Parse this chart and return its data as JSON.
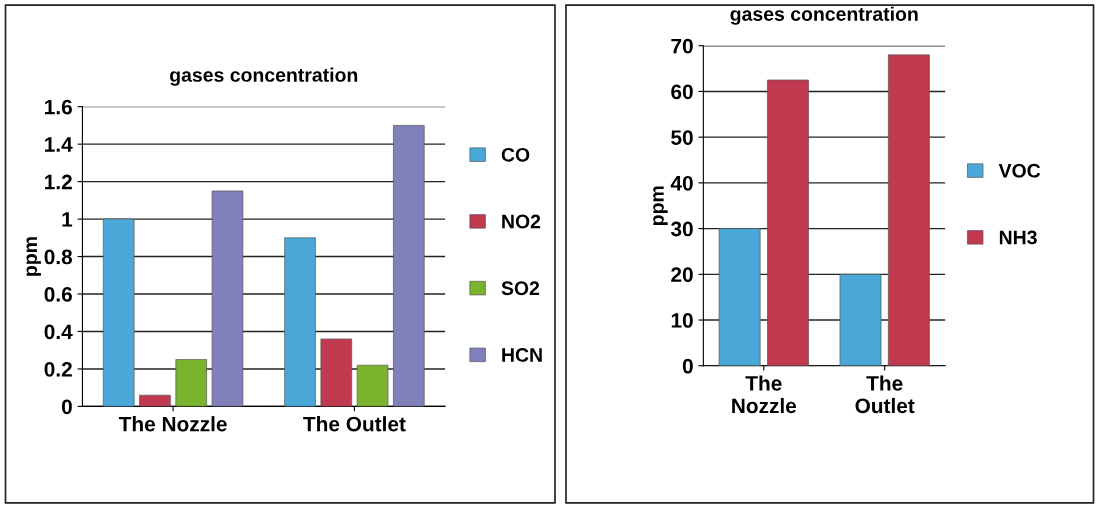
{
  "chart_data": [
    {
      "type": "bar",
      "title": "gases concentration",
      "ylabel": "ppm",
      "categories": [
        "The Nozzle",
        "The Outlet"
      ],
      "series": [
        {
          "name": "CO",
          "color": "#4aa8d8",
          "values": [
            1.0,
            0.9
          ]
        },
        {
          "name": "NO2",
          "color": "#c0394f",
          "values": [
            0.06,
            0.36
          ]
        },
        {
          "name": "SO2",
          "color": "#7ab32e",
          "values": [
            0.25,
            0.22
          ]
        },
        {
          "name": "HCN",
          "color": "#8080bb",
          "values": [
            1.15,
            1.5
          ]
        }
      ],
      "ylim": [
        0,
        1.6
      ],
      "yticks": [
        0,
        0.2,
        0.4,
        0.6,
        0.8,
        1,
        1.2,
        1.4,
        1.6
      ],
      "grid": "y",
      "legend": "right"
    },
    {
      "type": "bar",
      "title": "gases concentration",
      "ylabel": "ppm",
      "categories": [
        "The Nozzle",
        "The Outlet"
      ],
      "series": [
        {
          "name": "VOC",
          "color": "#4aa8d8",
          "values": [
            30,
            20
          ]
        },
        {
          "name": "NH3",
          "color": "#c0394f",
          "values": [
            62.5,
            68
          ]
        }
      ],
      "ylim": [
        0,
        70
      ],
      "yticks": [
        0,
        10,
        20,
        30,
        40,
        50,
        60,
        70
      ],
      "grid": "y",
      "legend": "right"
    }
  ]
}
